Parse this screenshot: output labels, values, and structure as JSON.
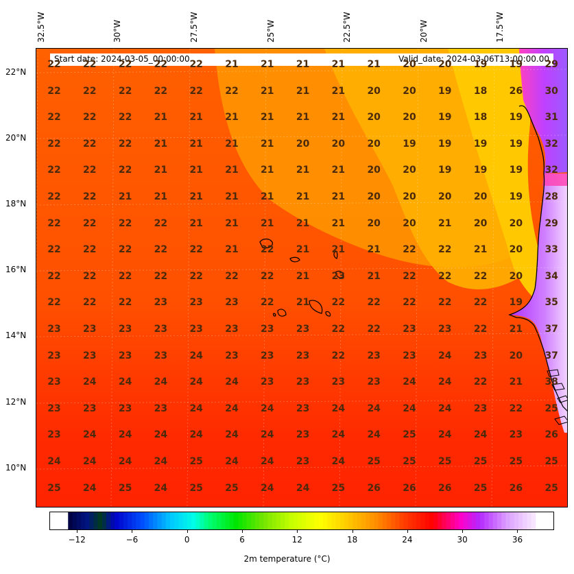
{
  "header": {
    "start_date": "Start date: 2024-03-05_00:00:00",
    "valid_date": "Valid_date: 2024-03-06T13:00:00.00"
  },
  "map": {
    "lon_labels": [
      "32.5°W",
      "30°W",
      "27.5°W",
      "25°W",
      "22.5°W",
      "20°W",
      "17.5°W"
    ],
    "lat_labels": [
      "22°N",
      "20°N",
      "18°N",
      "16°N",
      "14°N",
      "12°N",
      "10°N"
    ],
    "grid_values": [
      [
        "22",
        "22",
        "22",
        "22",
        "22",
        "21",
        "21",
        "21",
        "21",
        "21",
        "20",
        "20",
        "19",
        "19",
        "29"
      ],
      [
        "22",
        "22",
        "22",
        "22",
        "22",
        "22",
        "21",
        "21",
        "21",
        "20",
        "20",
        "19",
        "18",
        "26",
        "30"
      ],
      [
        "22",
        "22",
        "22",
        "21",
        "21",
        "21",
        "21",
        "21",
        "21",
        "20",
        "20",
        "19",
        "18",
        "19",
        "31"
      ],
      [
        "22",
        "22",
        "22",
        "21",
        "21",
        "21",
        "21",
        "20",
        "20",
        "20",
        "19",
        "19",
        "19",
        "19",
        "32"
      ],
      [
        "22",
        "22",
        "22",
        "21",
        "21",
        "21",
        "21",
        "21",
        "21",
        "20",
        "20",
        "19",
        "19",
        "19",
        "32"
      ],
      [
        "22",
        "22",
        "21",
        "21",
        "21",
        "21",
        "21",
        "21",
        "21",
        "20",
        "20",
        "20",
        "20",
        "19",
        "28"
      ],
      [
        "22",
        "22",
        "22",
        "22",
        "21",
        "21",
        "21",
        "21",
        "21",
        "20",
        "20",
        "21",
        "20",
        "20",
        "29"
      ],
      [
        "22",
        "22",
        "22",
        "22",
        "22",
        "21",
        "22",
        "21",
        "21",
        "21",
        "22",
        "22",
        "21",
        "20",
        "33"
      ],
      [
        "22",
        "22",
        "22",
        "22",
        "22",
        "22",
        "22",
        "21",
        "23",
        "21",
        "22",
        "22",
        "22",
        "20",
        "34"
      ],
      [
        "22",
        "22",
        "22",
        "23",
        "23",
        "23",
        "22",
        "21",
        "22",
        "22",
        "22",
        "22",
        "22",
        "19",
        "35"
      ],
      [
        "23",
        "23",
        "23",
        "23",
        "23",
        "23",
        "23",
        "23",
        "22",
        "22",
        "23",
        "23",
        "22",
        "21",
        "37"
      ],
      [
        "23",
        "23",
        "23",
        "23",
        "24",
        "23",
        "23",
        "23",
        "22",
        "23",
        "23",
        "24",
        "23",
        "20",
        "37"
      ],
      [
        "23",
        "24",
        "24",
        "24",
        "24",
        "24",
        "23",
        "23",
        "23",
        "23",
        "24",
        "24",
        "22",
        "21",
        "38"
      ],
      [
        "23",
        "23",
        "23",
        "23",
        "24",
        "24",
        "24",
        "23",
        "24",
        "24",
        "24",
        "24",
        "23",
        "22",
        "25"
      ],
      [
        "23",
        "24",
        "24",
        "24",
        "24",
        "24",
        "24",
        "23",
        "24",
        "24",
        "25",
        "24",
        "24",
        "23",
        "26"
      ],
      [
        "24",
        "24",
        "24",
        "24",
        "25",
        "24",
        "24",
        "23",
        "24",
        "25",
        "25",
        "25",
        "25",
        "25",
        "25"
      ],
      [
        "25",
        "24",
        "25",
        "24",
        "25",
        "25",
        "24",
        "24",
        "25",
        "26",
        "26",
        "26",
        "25",
        "26",
        "25"
      ]
    ]
  },
  "colorbar": {
    "tick_labels": [
      "−12",
      "−6",
      "0",
      "6",
      "12",
      "18",
      "24",
      "30",
      "36"
    ],
    "title": "2m temperature (°C)",
    "range": [
      -15,
      40
    ]
  },
  "colors": {
    "ocean_base": "#ff5a00",
    "ocean_south": "#ff2200",
    "ocean_cool": "#ffa500",
    "coast_cool": "#ffc400",
    "land_hot": "#c040ff",
    "land_hotter": "#f0c8ff",
    "coastline": "#000000",
    "value_text": "#4a2a0a"
  }
}
